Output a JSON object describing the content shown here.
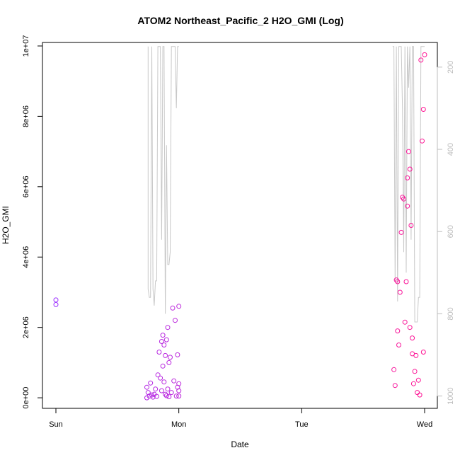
{
  "chart_data": {
    "type": "scatter",
    "title": "ATOM2 Northeast_Pacific_2 H2O_GMI (Log)",
    "xlabel": "Date",
    "ylabel": "H2O_GMI",
    "x_ticks": [
      "Sun",
      "Mon",
      "Tue",
      "Wed"
    ],
    "y_ticks": [
      "0e+00",
      "2e+06",
      "4e+06",
      "6e+06",
      "8e+06",
      "1e+07"
    ],
    "ylim": [
      -300000,
      10100000
    ],
    "y2_ticks": [
      "200",
      "400",
      "600",
      "800",
      "1000"
    ],
    "y2lim": [
      1030,
      140
    ],
    "y2_reversed": true,
    "point_color_start": "#9b30ff",
    "point_color_end": "#ff1493",
    "line_color": "#c8c8c8",
    "series": [
      {
        "kind": "points",
        "x": [
          0.0,
          0.0,
          0.74,
          0.74,
          0.75,
          0.76,
          0.77,
          0.78,
          0.79,
          0.8,
          0.81,
          0.82,
          0.83,
          0.84,
          0.85,
          0.86,
          0.86,
          0.87,
          0.87,
          0.88,
          0.88,
          0.89,
          0.89,
          0.9,
          0.9,
          0.91,
          0.91,
          0.92,
          0.92,
          0.93,
          0.94,
          0.95,
          0.96,
          0.97,
          0.98,
          0.99,
          0.99,
          1.0,
          1.0,
          1.0,
          1.0,
          2.75,
          2.76,
          2.77,
          2.78,
          2.78,
          2.79,
          2.8,
          2.81,
          2.82,
          2.83,
          2.84,
          2.85,
          2.86,
          2.86,
          2.87,
          2.88,
          2.88,
          2.89,
          2.9,
          2.9,
          2.91,
          2.92,
          2.93,
          2.94,
          2.95,
          2.96,
          2.97,
          2.98,
          2.99,
          2.99,
          3.0
        ],
        "y": [
          2780000,
          2650000,
          300000,
          0,
          150000,
          50000,
          420000,
          80000,
          20000,
          100000,
          250000,
          40000,
          650000,
          1300000,
          560000,
          1600000,
          200000,
          1780000,
          900000,
          1500000,
          450000,
          1200000,
          100000,
          1650000,
          60000,
          2000000,
          250000,
          1000000,
          30000,
          1150000,
          150000,
          2550000,
          480000,
          2200000,
          50000,
          1220000,
          300000,
          200000,
          400000,
          2600000,
          50000,
          800000,
          350000,
          3350000,
          1900000,
          3300000,
          1500000,
          3000000,
          4700000,
          5700000,
          5650000,
          2150000,
          3300000,
          6250000,
          5450000,
          7000000,
          2000000,
          6500000,
          4900000,
          1700000,
          1250000,
          400000,
          750000,
          1200000,
          150000,
          500000,
          80000,
          9600000,
          7300000,
          8200000,
          1300000,
          9750000
        ],
        "marker": "circle-open"
      },
      {
        "kind": "line",
        "y2_axis": true,
        "x": [
          0.75,
          0.75,
          0.76,
          0.77,
          0.78,
          0.79,
          0.8,
          0.81,
          0.82,
          0.83,
          0.84,
          0.85,
          0.86,
          0.87,
          0.88,
          0.89,
          0.9,
          0.91,
          0.92,
          0.93,
          0.94,
          0.95,
          0.96,
          0.97,
          0.98,
          0.99,
          1.0,
          2.74,
          2.75,
          2.76,
          2.77,
          2.78,
          2.79,
          2.8,
          2.81,
          2.82,
          2.83,
          2.84,
          2.85,
          2.86,
          2.87,
          2.88,
          2.89,
          2.9,
          2.91,
          2.92,
          2.93,
          2.94,
          2.95,
          2.96,
          2.97,
          2.98,
          2.99,
          3.0
        ],
        "y": [
          150,
          740,
          760,
          760,
          150,
          740,
          780,
          720,
          720,
          150,
          150,
          150,
          620,
          150,
          150,
          800,
          390,
          680,
          680,
          650,
          150,
          150,
          150,
          150,
          300,
          150,
          150,
          150,
          150,
          720,
          150,
          770,
          150,
          150,
          150,
          300,
          650,
          150,
          700,
          150,
          250,
          150,
          620,
          150,
          150,
          820,
          820,
          820,
          760,
          760,
          150,
          150,
          150,
          150
        ]
      }
    ]
  }
}
